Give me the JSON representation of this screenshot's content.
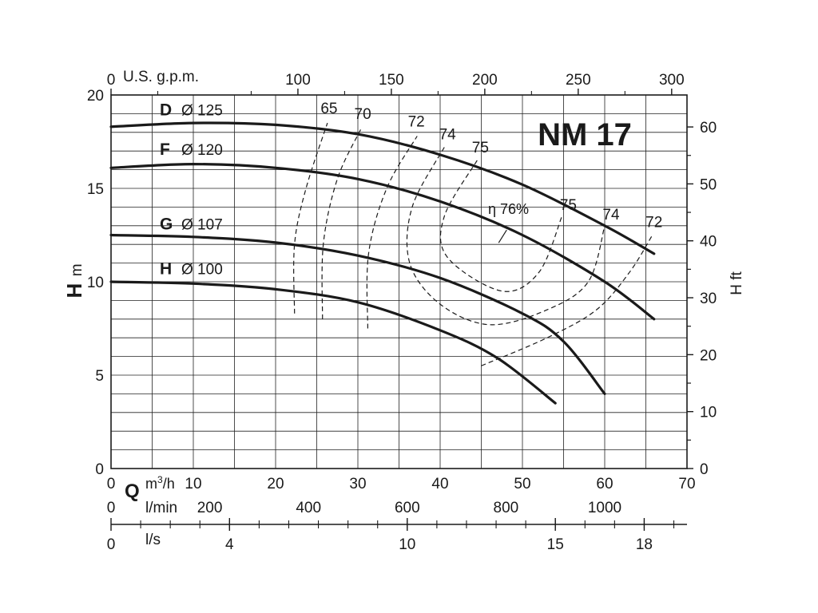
{
  "chart_data": {
    "type": "line",
    "title": "NM 17",
    "xlabel": {
      "symbol": "Q",
      "unit_prefix": "m",
      "unit_sup": "3",
      "unit_suffix": "/h"
    },
    "ylabel": {
      "symbol": "H",
      "unit": "m"
    },
    "ylabel_right": "H ft",
    "xlim": [
      0,
      70
    ],
    "ylim": [
      0,
      20
    ],
    "grid": true,
    "x_ticks": [
      0,
      10,
      20,
      30,
      40,
      50,
      60,
      70
    ],
    "y_ticks": [
      0,
      5,
      10,
      15,
      20
    ],
    "y_right_ticks": [
      0,
      10,
      20,
      30,
      40,
      50,
      60
    ],
    "top_axis": {
      "label": "U.S. g.p.m.",
      "ticks": [
        0,
        100,
        150,
        200,
        250,
        300
      ]
    },
    "lmin_axis": {
      "label": "l/min",
      "ticks": [
        0,
        200,
        400,
        600,
        800,
        1000
      ]
    },
    "ls_axis": {
      "label": "l/s",
      "ticks": [
        0,
        4,
        10,
        15,
        18
      ]
    },
    "series": [
      {
        "name": "D",
        "diameter": "Ø 125",
        "x": [
          0,
          10,
          20,
          30,
          40,
          50,
          60,
          66
        ],
        "y": [
          18.3,
          18.5,
          18.4,
          17.9,
          16.8,
          15.2,
          13.0,
          11.5
        ]
      },
      {
        "name": "F",
        "diameter": "Ø 120",
        "x": [
          0,
          10,
          20,
          30,
          40,
          50,
          60,
          66
        ],
        "y": [
          16.1,
          16.3,
          16.1,
          15.5,
          14.3,
          12.5,
          10.0,
          8.0
        ]
      },
      {
        "name": "G",
        "diameter": "Ø 107",
        "x": [
          0,
          10,
          20,
          30,
          40,
          50,
          55,
          60
        ],
        "y": [
          12.5,
          12.4,
          12.1,
          11.4,
          10.2,
          8.3,
          6.8,
          4.0
        ]
      },
      {
        "name": "H",
        "diameter": "Ø 100",
        "x": [
          0,
          10,
          20,
          30,
          40,
          47,
          54
        ],
        "y": [
          10.0,
          9.9,
          9.6,
          8.9,
          7.4,
          5.9,
          3.5
        ]
      }
    ],
    "efficiency_contours": [
      {
        "label": "65",
        "points": [
          [
            22.3,
            8.3
          ],
          [
            22.3,
            12.0
          ],
          [
            23.7,
            15.0
          ],
          [
            26.3,
            18.5
          ]
        ]
      },
      {
        "label": "70",
        "points": [
          [
            25.7,
            8.0
          ],
          [
            25.8,
            12.0
          ],
          [
            27.5,
            15.5
          ],
          [
            30.4,
            18.2
          ]
        ]
      },
      {
        "label": "72",
        "points": [
          [
            31.2,
            7.5
          ],
          [
            31.3,
            11.5
          ],
          [
            33.5,
            15.0
          ],
          [
            37.2,
            17.8
          ]
        ]
      },
      {
        "label": "74",
        "points": [
          [
            40.5,
            17.2
          ],
          [
            36.6,
            14.0
          ],
          [
            36.3,
            11.0
          ],
          [
            40.0,
            8.8
          ],
          [
            46.0,
            7.7
          ],
          [
            53.0,
            8.5
          ],
          [
            58.0,
            10.0
          ],
          [
            60.0,
            13.0
          ]
        ]
      },
      {
        "label": "75",
        "points": [
          [
            44.5,
            16.5
          ],
          [
            40.5,
            13.5
          ],
          [
            40.9,
            11.3
          ],
          [
            47.5,
            9.5
          ],
          [
            52.0,
            10.5
          ],
          [
            54.8,
            13.5
          ]
        ]
      },
      {
        "label": "72",
        "points": [
          [
            45.0,
            5.5
          ],
          [
            53.0,
            7.0
          ],
          [
            59.0,
            8.5
          ],
          [
            63.0,
            10.5
          ],
          [
            65.8,
            12.5
          ]
        ]
      }
    ],
    "efficiency_peak_label": "η 76%",
    "efficiency_peak_point": [
      47.5,
      12.6
    ]
  }
}
